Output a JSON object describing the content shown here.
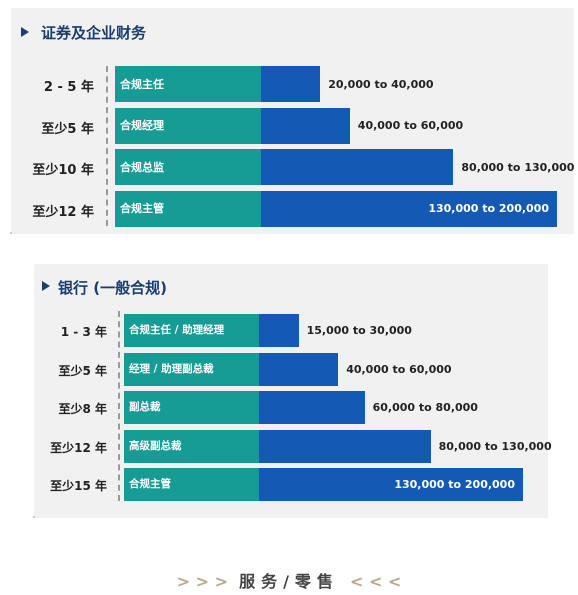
{
  "chart_data": [
    {
      "type": "bar",
      "title": "证券及企业财务",
      "categories": [
        "2 - 5 年",
        "至少5 年",
        "至少10 年",
        "至少12 年"
      ],
      "roles": [
        "合规主任",
        "合规经理",
        "合规总监",
        "合规主管"
      ],
      "range_labels": [
        "20,000 to 40,000",
        "40,000 to 60,000",
        "80,000 to 130,000",
        "130,000 to 200,000"
      ],
      "series": [
        {
          "values": [
            [
              20000,
              40000
            ],
            [
              40000,
              60000
            ],
            [
              80000,
              130000
            ],
            [
              130000,
              200000
            ]
          ]
        }
      ],
      "xlim": [
        0,
        200000
      ],
      "colors": {
        "role_bar": "#169b95",
        "salary_bar": "#1459b3"
      }
    },
    {
      "type": "bar",
      "title": "银行 (一般合规)",
      "categories": [
        "1 - 3 年",
        "至少5 年",
        "至少8 年",
        "至少12 年",
        "至少15 年"
      ],
      "roles": [
        "合规主任 / 助理经理",
        "经理 / 助理副总裁",
        "副总裁",
        "高级副总裁",
        "合规主管"
      ],
      "range_labels": [
        "15,000 to 30,000",
        "40,000 to 60,000",
        "60,000 to 80,000",
        "80,000 to 130,000",
        "130,000 to 200,000"
      ],
      "series": [
        {
          "values": [
            [
              15000,
              30000
            ],
            [
              40000,
              60000
            ],
            [
              60000,
              80000
            ],
            [
              80000,
              130000
            ],
            [
              130000,
              200000
            ]
          ]
        }
      ],
      "xlim": [
        0,
        200000
      ],
      "colors": {
        "role_bar": "#169b95",
        "salary_bar": "#1459b3"
      }
    }
  ],
  "footer": {
    "left_arrows": "> > >",
    "text": "服务/零售",
    "right_arrows": "< < <"
  }
}
